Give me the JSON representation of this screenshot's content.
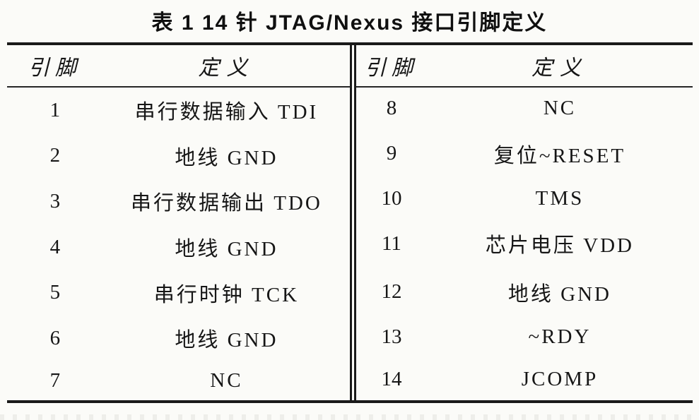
{
  "page": {
    "background": "#fbfbf8",
    "text_color": "#161616",
    "rule_color": "#1a1a1a"
  },
  "title": "表 1  14 针 JTAG/Nexus 接口引脚定义",
  "table": {
    "left": {
      "headers": {
        "pin": "引脚",
        "definition": "定义"
      },
      "rows": [
        {
          "pin": "1",
          "definition": "串行数据输入 TDI"
        },
        {
          "pin": "2",
          "definition": "地线 GND"
        },
        {
          "pin": "3",
          "definition": "串行数据输出 TDO"
        },
        {
          "pin": "4",
          "definition": "地线 GND"
        },
        {
          "pin": "5",
          "definition": "串行时钟 TCK"
        },
        {
          "pin": "6",
          "definition": "地线 GND"
        },
        {
          "pin": "7",
          "definition": "NC"
        }
      ]
    },
    "right": {
      "headers": {
        "pin": "引脚",
        "definition": "定义"
      },
      "rows": [
        {
          "pin": "8",
          "definition": "NC"
        },
        {
          "pin": "9",
          "definition": "复位~RESET"
        },
        {
          "pin": "10",
          "definition": "TMS"
        },
        {
          "pin": "11",
          "definition": "芯片电压 VDD"
        },
        {
          "pin": "12",
          "definition": "地线 GND"
        },
        {
          "pin": "13",
          "definition": "~RDY"
        },
        {
          "pin": "14",
          "definition": "JCOMP"
        }
      ]
    }
  }
}
